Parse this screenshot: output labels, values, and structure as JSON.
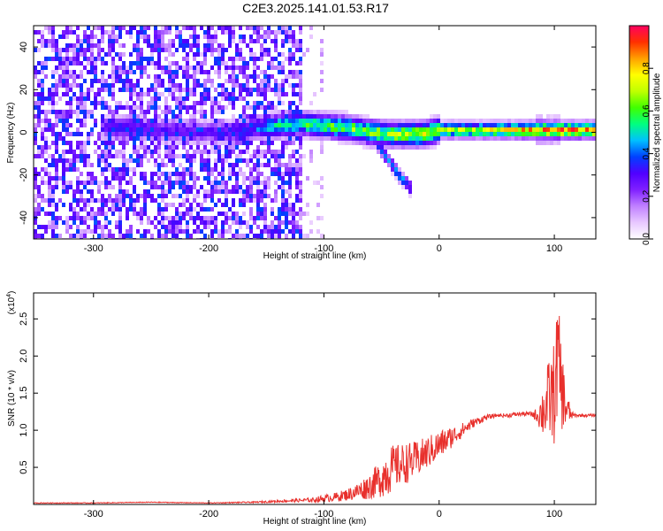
{
  "title": "C2E3.2025.141.01.53.R17",
  "chart_data": [
    {
      "type": "heatmap",
      "xlabel": "Height of straight line (km)",
      "ylabel": "Frequency (Hz)",
      "xlim": [
        -352,
        136
      ],
      "ylim": [
        -50,
        50
      ],
      "x_ticks": [
        -300,
        -200,
        -100,
        0,
        100
      ],
      "y_ticks": [
        -40,
        -20,
        0,
        20,
        40
      ],
      "colorbar": {
        "label": "Normalized spectral amplitude",
        "range": [
          0,
          1
        ],
        "ticks": [
          0.0,
          0.2,
          0.4,
          0.6,
          0.8
        ],
        "colors": [
          "#ffffff",
          "#e8c8ff",
          "#c080ff",
          "#8020ff",
          "#5000ff",
          "#0040ff",
          "#00c0ff",
          "#00ff80",
          "#40ff00",
          "#c0ff00",
          "#ffff00",
          "#ffa000",
          "#ff3000",
          "#ff0060"
        ]
      },
      "ridge": {
        "x": [
          -285,
          -270,
          -250,
          -200,
          -180,
          -160,
          -140,
          -120,
          -100,
          -80,
          -60,
          -45,
          -30,
          -15,
          0,
          20,
          40,
          60,
          80,
          100,
          120,
          136
        ],
        "freq": [
          2,
          2,
          1,
          0,
          0,
          2,
          3,
          4,
          3,
          2,
          0,
          -1,
          -1,
          -1,
          1,
          1,
          1,
          1,
          1,
          1,
          1,
          1
        ],
        "amplitude": [
          0.3,
          0.4,
          0.3,
          0.3,
          0.35,
          0.4,
          0.55,
          0.6,
          0.6,
          0.65,
          0.7,
          0.7,
          0.72,
          0.75,
          0.7,
          0.72,
          0.75,
          0.8,
          0.85,
          0.95,
          0.9,
          0.9
        ]
      },
      "branch": {
        "x": [
          -55,
          -45,
          -35,
          -25
        ],
        "freq": [
          -5,
          -12,
          -20,
          -26
        ]
      }
    },
    {
      "type": "line",
      "xlabel": "Height of straight line (km)",
      "ylabel": "SNR (10 * v/v)",
      "y_multiplier": "(x10",
      "y_multiplier_exp": "4",
      "y_multiplier_close": ")",
      "xlim": [
        -352,
        136
      ],
      "ylim": [
        0,
        2.85
      ],
      "x_ticks": [
        -300,
        -200,
        -100,
        0,
        100
      ],
      "y_ticks": [
        0.5,
        1.0,
        1.5,
        2.0,
        2.5
      ],
      "color": "#e8302c",
      "series": [
        {
          "x": [
            -352,
            -300,
            -250,
            -200,
            -160,
            -130,
            -110,
            -100,
            -90,
            -80,
            -70,
            -60,
            -50,
            -45,
            -40,
            -30,
            -20,
            -10,
            0,
            10,
            20,
            30,
            40,
            50,
            60,
            70,
            80,
            85,
            90,
            95,
            100,
            103,
            106,
            110,
            115,
            120,
            136
          ],
          "y": [
            0.02,
            0.02,
            0.03,
            0.02,
            0.03,
            0.05,
            0.06,
            0.08,
            0.1,
            0.13,
            0.18,
            0.25,
            0.35,
            0.45,
            0.5,
            0.55,
            0.6,
            0.7,
            0.8,
            0.9,
            1.0,
            1.1,
            1.17,
            1.2,
            1.2,
            1.22,
            1.22,
            1.2,
            1.25,
            1.4,
            1.5,
            2.0,
            1.6,
            1.3,
            1.2,
            1.2,
            1.2
          ],
          "noise": [
            0.005,
            0.005,
            0.005,
            0.005,
            0.01,
            0.02,
            0.03,
            0.05,
            0.06,
            0.08,
            0.12,
            0.18,
            0.25,
            0.35,
            0.3,
            0.28,
            0.25,
            0.22,
            0.2,
            0.15,
            0.1,
            0.06,
            0.04,
            0.02,
            0.03,
            0.03,
            0.03,
            0.1,
            0.35,
            0.55,
            0.7,
            0.8,
            0.6,
            0.3,
            0.05,
            0.02,
            0.02
          ]
        }
      ]
    }
  ]
}
